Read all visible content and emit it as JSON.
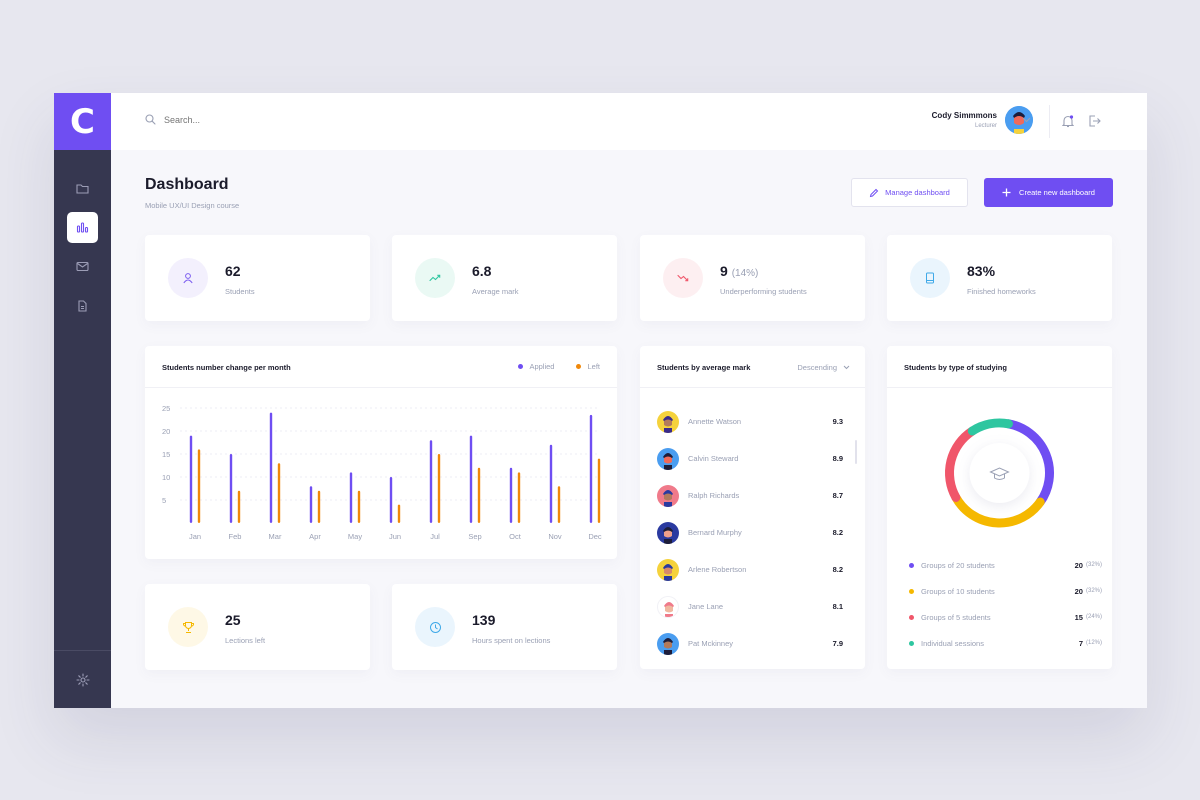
{
  "app": {
    "logo_letter": "C"
  },
  "sidebar": {
    "items": [
      {
        "icon": "folder-icon",
        "active": false
      },
      {
        "icon": "bar-chart-icon",
        "active": true
      },
      {
        "icon": "mail-icon",
        "active": false
      },
      {
        "icon": "document-icon",
        "active": false
      }
    ],
    "bottom_icon": "gear-icon"
  },
  "topbar": {
    "search_placeholder": "Search...",
    "user": {
      "name": "Cody Simmmons",
      "role": "Lecturer"
    }
  },
  "header": {
    "title": "Dashboard",
    "subtitle": "Mobile UX/UI Design course",
    "manage_label": "Manage dashboard",
    "create_label": "Create new dashboard"
  },
  "stats": [
    {
      "value": "62",
      "extra": "",
      "label": "Students",
      "icon": "user-icon",
      "color": "#7b5cf0"
    },
    {
      "value": "6.8",
      "extra": "",
      "label": "Average mark",
      "icon": "trend-up-icon",
      "color": "#2ec6a0"
    },
    {
      "value": "9",
      "extra": "(14%)",
      "label": "Underperforming students",
      "icon": "trend-down-icon",
      "color": "#f0566a"
    },
    {
      "value": "83%",
      "extra": "",
      "label": "Finished homeworks",
      "icon": "book-icon",
      "color": "#3fa9e8"
    }
  ],
  "stats_bottom": [
    {
      "value": "25",
      "label": "Lections left",
      "icon": "trophy-icon",
      "color": "#f5b800"
    },
    {
      "value": "139",
      "label": "Hours spent on lections",
      "icon": "clock-icon",
      "color": "#3fa9e8"
    }
  ],
  "bar_chart": {
    "title": "Students number change per month",
    "legend": {
      "applied": "Applied",
      "left": "Left"
    }
  },
  "chart_data": {
    "type": "bar",
    "categories": [
      "Jan",
      "Feb",
      "Mar",
      "Apr",
      "May",
      "Jun",
      "Jul",
      "Sep",
      "Oct",
      "Nov",
      "Dec"
    ],
    "series": [
      {
        "name": "Applied",
        "color": "#6f4ef2",
        "values": [
          19,
          15,
          24,
          8,
          11,
          10,
          18,
          19,
          12,
          17,
          23.5
        ]
      },
      {
        "name": "Left",
        "color": "#f0880a",
        "values": [
          16,
          7,
          13,
          7,
          7,
          4,
          15,
          12,
          11,
          8,
          14
        ]
      }
    ],
    "yticks": [
      "5",
      "10",
      "15",
      "20",
      "25"
    ],
    "ylim": [
      0,
      25
    ],
    "grid": true,
    "legend_position": "top-right"
  },
  "students_list": {
    "title": "Students by average mark",
    "sort_label": "Descending",
    "items": [
      {
        "name": "Annette Watson",
        "mark": "9.3",
        "bg": "#f5d23c",
        "hair": "#3a2b8a",
        "face": "#b37a5c"
      },
      {
        "name": "Calvin Steward",
        "mark": "8.9",
        "bg": "#4a9df0",
        "hair": "#1d1d3a",
        "face": "#f06a5a"
      },
      {
        "name": "Ralph Richards",
        "mark": "8.7",
        "bg": "#f07a8a",
        "hair": "#2a3aa0",
        "face": "#b37a5c"
      },
      {
        "name": "Bernard Murphy",
        "mark": "8.2",
        "bg": "#2a3aa0",
        "hair": "#1d1d3a",
        "face": "#f0a08a"
      },
      {
        "name": "Arlene Robertson",
        "mark": "8.2",
        "bg": "#f5d23c",
        "hair": "#2a3aa0",
        "face": "#d88a6a"
      },
      {
        "name": "Jane Lane",
        "mark": "8.1",
        "bg": "#ffffff",
        "hair": "#f07a8a",
        "face": "#f0b8a0"
      },
      {
        "name": "Pat Mckinney",
        "mark": "7.9",
        "bg": "#4a9df0",
        "hair": "#1d1d3a",
        "face": "#b37a5c"
      }
    ]
  },
  "donut_chart": {
    "title": "Students by type of studying",
    "center_icon": "graduation-cap-icon",
    "segments": [
      {
        "label": "Groups of 20 students",
        "count": "20",
        "pct": "(32%)",
        "share": 0.32,
        "color": "#6f4ef2"
      },
      {
        "label": "Groups of 10 students",
        "count": "20",
        "pct": "(32%)",
        "share": 0.32,
        "color": "#f5b800"
      },
      {
        "label": "Groups of 5 students",
        "count": "15",
        "pct": "(24%)",
        "share": 0.24,
        "color": "#f0566a"
      },
      {
        "label": "Individual sessions",
        "count": "7",
        "pct": "(12%)",
        "share": 0.12,
        "color": "#2ec6a0"
      }
    ]
  }
}
